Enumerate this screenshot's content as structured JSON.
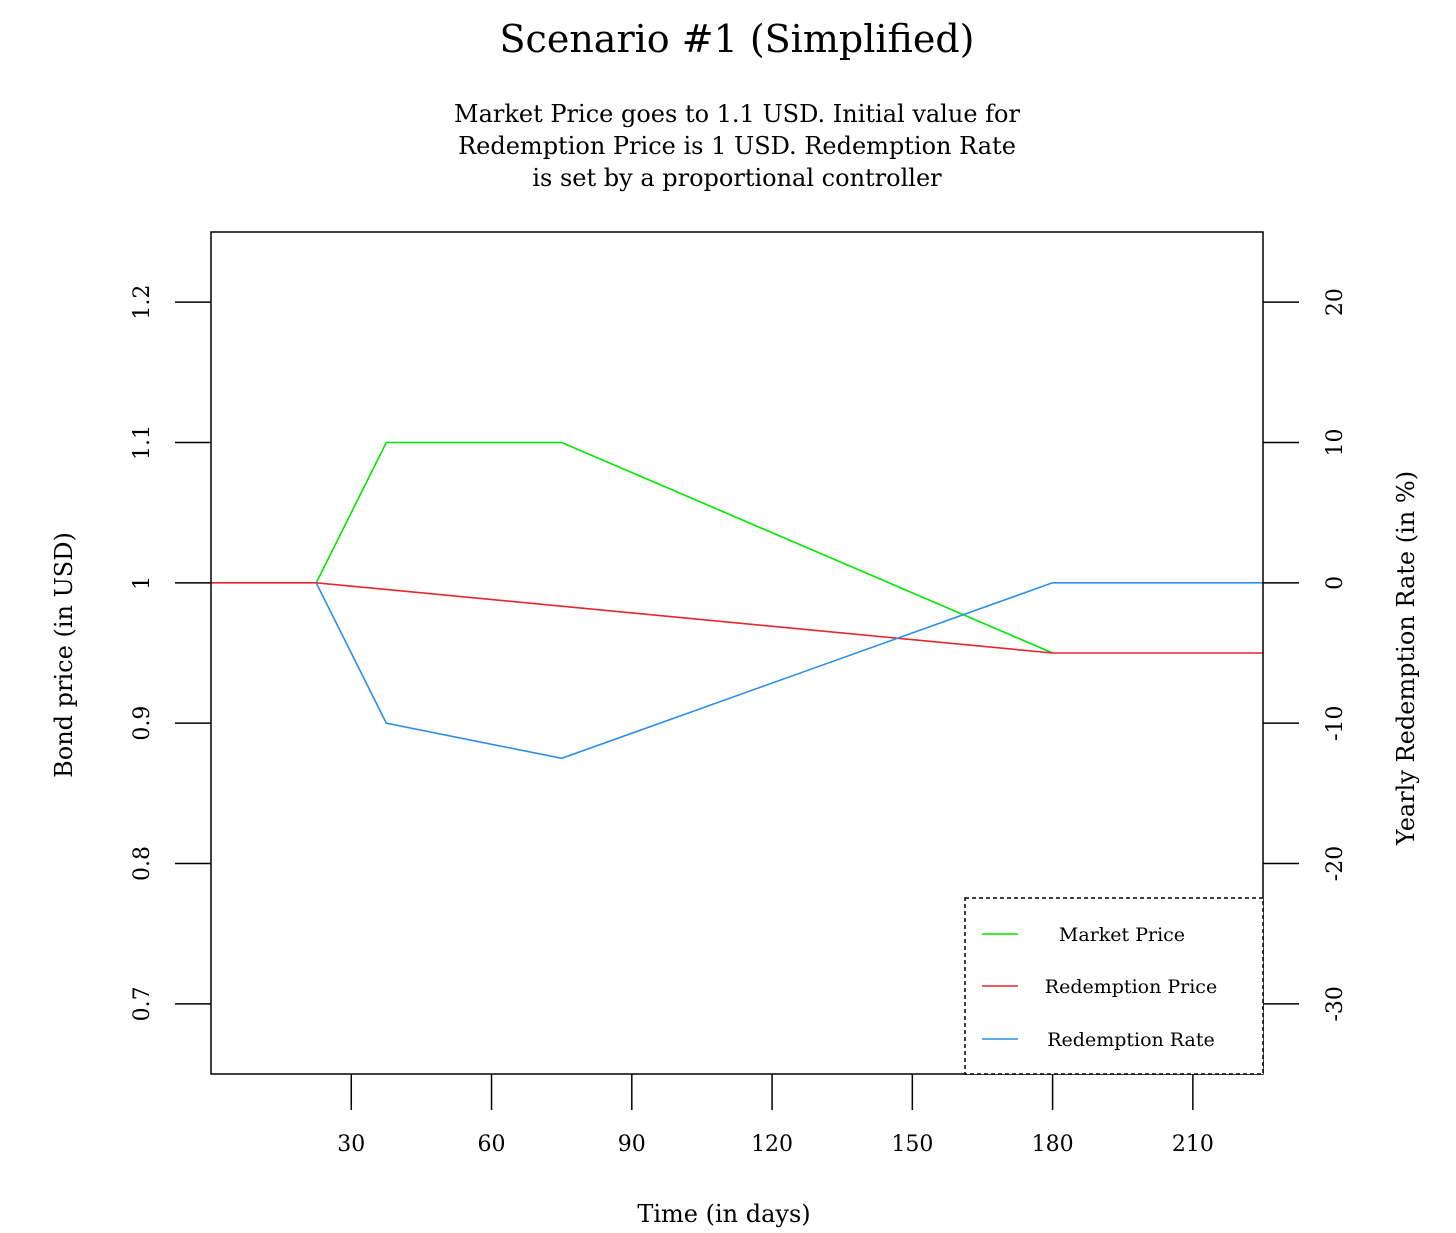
{
  "chart_data": {
    "type": "line",
    "title": "Scenario #1 (Simplified)",
    "subtitle": [
      "Market Price goes to 1.1 USD. Initial value for",
      "Redemption Price is 1 USD. Redemption Rate",
      "is set by a proportional controller"
    ],
    "xlabel": "Time (in days)",
    "ylabel": "Bond price (in USD)",
    "y2label": "Yearly Redemption Rate (in %)",
    "xlim": [
      0,
      225
    ],
    "ylim": [
      0.65,
      1.25
    ],
    "y2lim": [
      -35,
      25
    ],
    "xticks": [
      30,
      60,
      90,
      120,
      150,
      180,
      210
    ],
    "xtick_labels": [
      "30",
      "60",
      "90",
      "120",
      "150",
      "180",
      "210"
    ],
    "yticks": [
      0.7,
      0.8,
      0.9,
      1.0,
      1.1,
      1.2
    ],
    "ytick_labels": [
      "0.7",
      "0.8",
      "0.9",
      "1",
      "1.1",
      "1.2"
    ],
    "y2ticks": [
      -30,
      -20,
      -10,
      0,
      10,
      20
    ],
    "y2tick_labels": [
      "-30",
      "-20",
      "-10",
      "0",
      "10",
      "20"
    ],
    "grid": false,
    "legend_position": "bottom-right",
    "series": [
      {
        "name": "Market Price",
        "axis": "left",
        "color": "#00e600",
        "x": [
          22.5,
          37.5,
          75,
          180
        ],
        "y": [
          1.0,
          1.1,
          1.1,
          0.95
        ]
      },
      {
        "name": "Redemption Price",
        "axis": "left",
        "color": "#e6262f",
        "x": [
          0,
          22.5,
          180,
          225
        ],
        "y": [
          1.0,
          1.0,
          0.95,
          0.95
        ]
      },
      {
        "name": "Redemption Rate",
        "axis": "right",
        "color": "#2b8fe8",
        "x": [
          22.5,
          37.5,
          75,
          180,
          225
        ],
        "y": [
          0,
          -10,
          -12.5,
          0,
          0
        ]
      }
    ]
  }
}
